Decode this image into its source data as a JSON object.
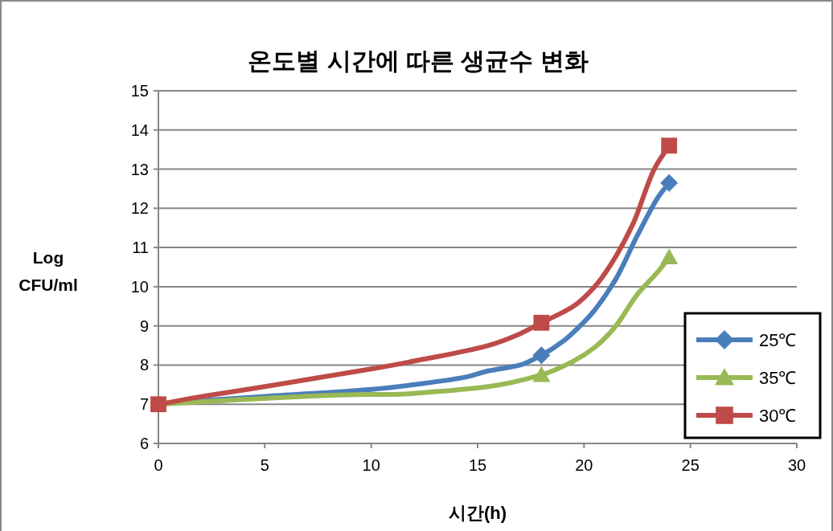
{
  "chart_data": {
    "type": "line",
    "title": "온도별 시간에 따른 생균수 변화",
    "xlabel": "시간(h)",
    "ylabel": "Log\nCFU/ml",
    "xlim": [
      0,
      30
    ],
    "xticks": [
      0,
      5,
      10,
      15,
      20,
      25,
      30
    ],
    "ylim": [
      6,
      15
    ],
    "yticks": [
      6,
      7,
      8,
      9,
      10,
      11,
      12,
      13,
      14,
      15
    ],
    "grid": "y",
    "legend": "bottom right",
    "line_style": "solid",
    "series": [
      {
        "name": "25℃",
        "color": "#4a7ebb",
        "x": [
          0,
          2.3,
          5,
          10,
          12,
          14.5,
          15.5,
          17,
          18,
          19,
          20,
          20.5,
          21.5,
          22.5,
          23.5,
          24
        ],
        "values": [
          7,
          7.1,
          7.2,
          7.38,
          7.5,
          7.7,
          7.85,
          8,
          8.25,
          8.6,
          9.1,
          9.4,
          10.2,
          11.3,
          12.3,
          12.65
        ]
      },
      {
        "name": "35℃",
        "color": "#98b954",
        "x": [
          0,
          5,
          10,
          11,
          13,
          15.5,
          18,
          19.5,
          20.5,
          21.5,
          22.5,
          23.5,
          24
        ],
        "values": [
          7,
          7.15,
          7.25,
          7.25,
          7.32,
          7.45,
          7.75,
          8.1,
          8.45,
          9,
          9.8,
          10.4,
          10.75
        ]
      },
      {
        "name": "30℃",
        "color": "#be4b48",
        "x": [
          0,
          2.3,
          5,
          10,
          12,
          15.5,
          17,
          18,
          19.5,
          20.5,
          21.3,
          22.3,
          23.3,
          24
        ],
        "values": [
          7,
          7.22,
          7.45,
          7.9,
          8.1,
          8.5,
          8.8,
          9.08,
          9.5,
          10,
          10.6,
          11.6,
          13,
          13.6
        ]
      },
      {
        "color": "#4a7ebb",
        "type": "scatter",
        "marker": "diamond",
        "x": [
          18,
          24
        ],
        "values": [
          8.25,
          12.65
        ]
      },
      {
        "color": "#98b954",
        "type": "scatter",
        "marker": "triangle",
        "x": [
          18,
          24
        ],
        "values": [
          7.75,
          10.75
        ]
      },
      {
        "color": "#be4b48",
        "type": "scatter",
        "marker": "square",
        "x": [
          0,
          18,
          24
        ],
        "values": [
          7,
          9.08,
          13.6
        ]
      }
    ]
  }
}
